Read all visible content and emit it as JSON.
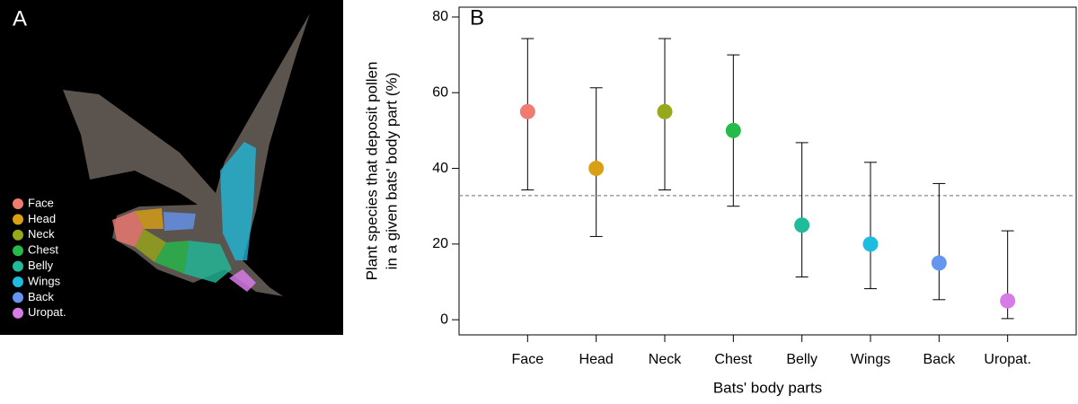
{
  "panel_a": {
    "label": "A",
    "legend": [
      {
        "label": "Face",
        "color": "#f07b73"
      },
      {
        "label": "Head",
        "color": "#d9a016"
      },
      {
        "label": "Neck",
        "color": "#98a81a"
      },
      {
        "label": "Chest",
        "color": "#25bb4b"
      },
      {
        "label": "Belly",
        "color": "#1fbb9b"
      },
      {
        "label": "Wings",
        "color": "#1ebce0"
      },
      {
        "label": "Back",
        "color": "#6495ef"
      },
      {
        "label": "Uropat.",
        "color": "#d77be6"
      }
    ]
  },
  "chart_data": {
    "type": "errorbar",
    "panel_label": "B",
    "x_label": "Bats' body parts",
    "y_label": [
      "Plant species that deposit pollen",
      "in a given bats' body part (%)"
    ],
    "categories": [
      "Face",
      "Head",
      "Neck",
      "Chest",
      "Belly",
      "Wings",
      "Back",
      "Uropat."
    ],
    "series": [
      {
        "values": [
          55,
          40,
          55,
          50,
          25,
          20,
          15,
          5
        ],
        "lower": [
          34.3,
          22,
          34.3,
          30,
          11.3,
          8.2,
          5.3,
          0.3
        ],
        "upper": [
          74.3,
          61.3,
          74.3,
          70,
          46.8,
          41.6,
          36,
          23.5
        ],
        "colors": [
          "#f07b73",
          "#d9a016",
          "#98a81a",
          "#25bb4b",
          "#1fbb9b",
          "#1ebce0",
          "#6495ef",
          "#d77be6"
        ]
      }
    ],
    "reference_line": 32.8,
    "ylim": [
      -4,
      82.6
    ],
    "yticks": [
      0,
      20,
      40,
      60,
      80
    ]
  }
}
